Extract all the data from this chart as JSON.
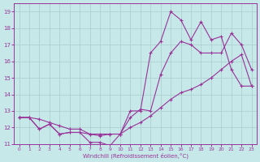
{
  "xlabel": "Windchill (Refroidissement éolien,°C)",
  "ylabel": "",
  "background_color": "#c6e8e8",
  "line_color": "#993399",
  "grid_color": "#aacccc",
  "xlim": [
    -0.5,
    23.5
  ],
  "ylim": [
    11,
    19.5
  ],
  "xticks": [
    0,
    1,
    2,
    3,
    4,
    5,
    6,
    7,
    8,
    9,
    10,
    11,
    12,
    13,
    14,
    15,
    16,
    17,
    18,
    19,
    20,
    21,
    22,
    23
  ],
  "yticks": [
    11,
    12,
    13,
    14,
    15,
    16,
    17,
    18,
    19
  ],
  "lines": [
    {
      "x": [
        0,
        1,
        2,
        3,
        4,
        5,
        6,
        7,
        8,
        9,
        10,
        11,
        12,
        13,
        14,
        15,
        16,
        17,
        18,
        19,
        20,
        21,
        22,
        23
      ],
      "y": [
        12.6,
        12.6,
        12.5,
        12.3,
        12.1,
        11.9,
        11.9,
        11.6,
        11.6,
        11.6,
        11.6,
        12.0,
        12.3,
        12.7,
        13.2,
        13.7,
        14.1,
        14.3,
        14.6,
        15.0,
        15.5,
        16.0,
        16.4,
        14.5
      ]
    },
    {
      "x": [
        0,
        1,
        2,
        3,
        4,
        5,
        6,
        7,
        8,
        9,
        10,
        11,
        12,
        13,
        14,
        15,
        16,
        17,
        18,
        19,
        20,
        21,
        22,
        23
      ],
      "y": [
        12.6,
        12.6,
        11.9,
        12.2,
        11.6,
        11.7,
        11.7,
        11.6,
        11.5,
        11.6,
        11.6,
        12.6,
        13.1,
        13.0,
        15.2,
        16.5,
        17.2,
        17.0,
        16.5,
        16.5,
        16.5,
        17.7,
        17.0,
        15.5
      ]
    },
    {
      "x": [
        0,
        1,
        2,
        3,
        4,
        5,
        6,
        7,
        8,
        9,
        10,
        11,
        12,
        13,
        14,
        15,
        16,
        17,
        18,
        19,
        20,
        21,
        22,
        23
      ],
      "y": [
        12.6,
        12.6,
        11.9,
        12.2,
        11.6,
        11.7,
        11.7,
        11.1,
        11.1,
        10.9,
        11.6,
        13.0,
        13.0,
        16.5,
        17.2,
        19.0,
        18.5,
        17.3,
        18.4,
        17.3,
        17.5,
        15.5,
        14.5,
        14.5
      ]
    }
  ]
}
